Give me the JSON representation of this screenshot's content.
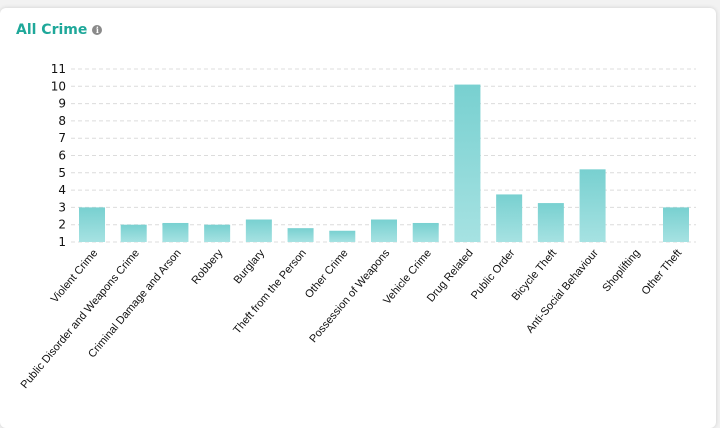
{
  "card": {
    "title": "All Crime",
    "info_icon": "info-icon"
  },
  "colors": {
    "accent": "#1fa89a",
    "bar_top": "#78d0d0",
    "bar_bottom": "#a6e2e2",
    "grid": "#dcdcdc"
  },
  "chart_data": {
    "type": "bar",
    "title": "",
    "xlabel": "",
    "ylabel": "",
    "ylim": [
      1,
      11
    ],
    "yticks": [
      1,
      2,
      3,
      4,
      5,
      6,
      7,
      8,
      9,
      10,
      11
    ],
    "grid": true,
    "categories": [
      "Violent Crime",
      "Public Disorder and Weapons Crime",
      "Criminal Damage and Arson",
      "Robbery",
      "Burglary",
      "Theft from the Person",
      "Other Crime",
      "Possession of Weapons",
      "Vehicle Crime",
      "Drug Related",
      "Public Order",
      "Bicycle Theft",
      "Anti-Social Behaviour",
      "Shoplifting",
      "Other Theft"
    ],
    "values": [
      3.0,
      2.0,
      2.1,
      2.0,
      2.3,
      1.8,
      1.65,
      2.3,
      2.1,
      10.1,
      3.75,
      3.25,
      5.2,
      1.0,
      3.0
    ]
  }
}
